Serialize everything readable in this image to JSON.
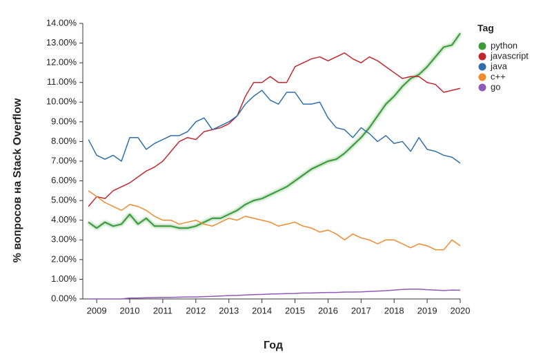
{
  "chart_data": {
    "type": "line",
    "y_label": "% вопросов на Stack Overflow",
    "x_label": "Год",
    "legend_title": "Tag",
    "legend": "right",
    "x": [
      2008.75,
      2009.0,
      2009.25,
      2009.5,
      2009.75,
      2010.0,
      2010.25,
      2010.5,
      2010.75,
      2011.0,
      2011.25,
      2011.5,
      2011.75,
      2012.0,
      2012.25,
      2012.5,
      2012.75,
      2013.0,
      2013.25,
      2013.5,
      2013.75,
      2014.0,
      2014.25,
      2014.5,
      2014.75,
      2015.0,
      2015.25,
      2015.5,
      2015.75,
      2016.0,
      2016.25,
      2016.5,
      2016.75,
      2017.0,
      2017.25,
      2017.5,
      2017.75,
      2018.0,
      2018.25,
      2018.5,
      2018.75,
      2019.0,
      2019.25,
      2019.5,
      2019.75,
      2020.0
    ],
    "series": [
      {
        "name": "python",
        "color": "#3a9a3a",
        "values": [
          3.9,
          3.6,
          3.9,
          3.7,
          3.8,
          4.3,
          3.8,
          4.1,
          3.7,
          3.7,
          3.7,
          3.6,
          3.6,
          3.7,
          3.9,
          4.1,
          4.1,
          4.3,
          4.5,
          4.8,
          5.0,
          5.1,
          5.3,
          5.5,
          5.7,
          6.0,
          6.3,
          6.6,
          6.8,
          7.0,
          7.1,
          7.4,
          7.8,
          8.2,
          8.7,
          9.3,
          9.9,
          10.3,
          10.8,
          11.2,
          11.4,
          11.8,
          12.3,
          12.8,
          12.9,
          13.5
        ]
      },
      {
        "name": "javascript",
        "color": "#c0282d",
        "values": [
          4.7,
          5.2,
          5.1,
          5.5,
          5.7,
          5.9,
          6.2,
          6.5,
          6.7,
          7.0,
          7.5,
          8.0,
          8.2,
          8.1,
          8.5,
          8.6,
          8.7,
          8.9,
          9.3,
          10.3,
          11.0,
          11.0,
          11.3,
          11.0,
          11.0,
          11.8,
          12.0,
          12.2,
          12.3,
          12.1,
          12.3,
          12.5,
          12.2,
          12.0,
          12.3,
          12.1,
          11.8,
          11.5,
          11.2,
          11.3,
          11.3,
          11.0,
          10.9,
          10.5,
          10.6,
          10.7
        ]
      },
      {
        "name": "java",
        "color": "#2f6ea8",
        "values": [
          8.1,
          7.3,
          7.1,
          7.3,
          7.0,
          8.2,
          8.2,
          7.6,
          7.9,
          8.1,
          8.3,
          8.3,
          8.5,
          9.0,
          9.2,
          8.6,
          8.8,
          9.0,
          9.3,
          9.9,
          10.3,
          10.6,
          10.1,
          9.9,
          10.5,
          10.5,
          9.9,
          9.9,
          10.0,
          9.2,
          8.7,
          8.6,
          8.2,
          8.7,
          8.4,
          8.0,
          8.3,
          7.9,
          8.0,
          7.5,
          8.2,
          7.6,
          7.5,
          7.3,
          7.2,
          6.9
        ]
      },
      {
        "name": "c++",
        "color": "#f08a2e",
        "values": [
          5.5,
          5.2,
          4.9,
          4.7,
          4.5,
          4.8,
          4.7,
          4.5,
          4.2,
          4.0,
          4.0,
          3.8,
          3.9,
          4.0,
          3.8,
          3.7,
          3.9,
          4.1,
          4.0,
          4.2,
          4.1,
          4.0,
          3.9,
          3.7,
          3.8,
          3.9,
          3.7,
          3.6,
          3.4,
          3.5,
          3.3,
          3.0,
          3.3,
          3.1,
          3.0,
          2.8,
          3.0,
          3.0,
          2.8,
          2.6,
          2.8,
          2.7,
          2.5,
          2.5,
          3.0,
          2.7
        ]
      },
      {
        "name": "go",
        "color": "#8e5ab5",
        "values": [
          0,
          0,
          0,
          0,
          0,
          0.05,
          0.05,
          0.06,
          0.07,
          0.08,
          0.08,
          0.09,
          0.1,
          0.1,
          0.12,
          0.13,
          0.15,
          0.17,
          0.18,
          0.2,
          0.22,
          0.23,
          0.25,
          0.26,
          0.27,
          0.28,
          0.3,
          0.3,
          0.32,
          0.33,
          0.33,
          0.35,
          0.35,
          0.36,
          0.38,
          0.4,
          0.42,
          0.45,
          0.48,
          0.5,
          0.5,
          0.47,
          0.45,
          0.43,
          0.45,
          0.44
        ]
      }
    ],
    "xlim": [
      2008.58,
      2020
    ],
    "xticks": [
      2009,
      2010,
      2011,
      2012,
      2013,
      2014,
      2015,
      2016,
      2017,
      2018,
      2019,
      2020
    ],
    "ylim": [
      0,
      14
    ],
    "yticks": [
      {
        "value": 0,
        "label": "0.00%"
      },
      {
        "value": 1,
        "label": "1.00%"
      },
      {
        "value": 2,
        "label": "2.00%"
      },
      {
        "value": 3,
        "label": "3.00%"
      },
      {
        "value": 4,
        "label": "4.00%"
      },
      {
        "value": 5,
        "label": "5.00%"
      },
      {
        "value": 6,
        "label": "6.00%"
      },
      {
        "value": 7,
        "label": "7.00%"
      },
      {
        "value": 8,
        "label": "8.00%"
      },
      {
        "value": 9,
        "label": "9.00%"
      },
      {
        "value": 10,
        "label": "10.00%"
      },
      {
        "value": 11,
        "label": "11.00%"
      },
      {
        "value": 12,
        "label": "12.00%"
      },
      {
        "value": 13,
        "label": "13.00%"
      },
      {
        "value": 14,
        "label": "14.00%"
      }
    ]
  }
}
